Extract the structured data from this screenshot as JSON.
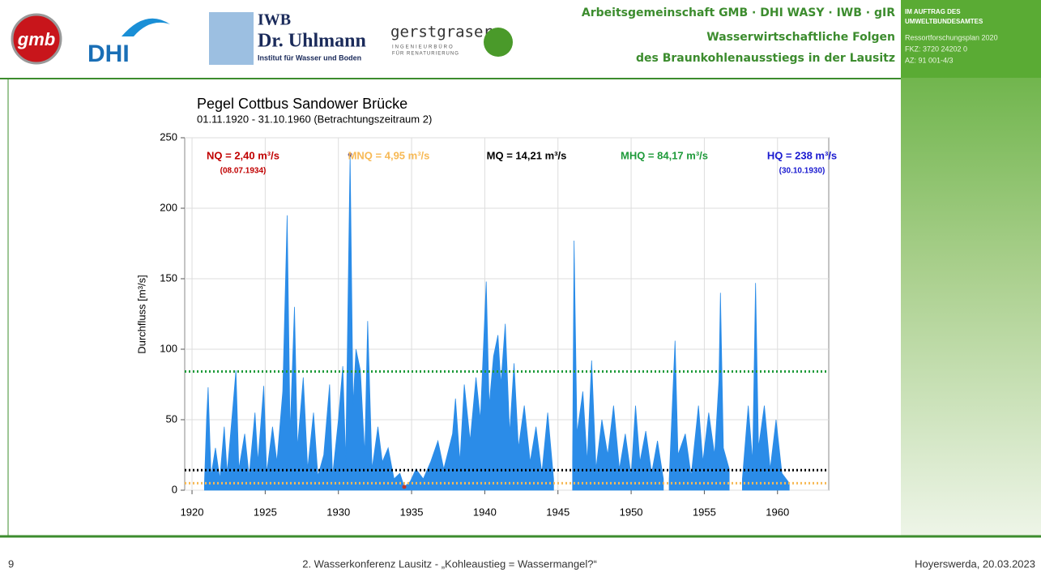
{
  "header": {
    "logos": [
      "DHI",
      "IWB",
      "Dr. Uhlmann",
      "Institut für Wasser und Boden",
      "gerstgraser",
      "INGENIEURBÜRO",
      "FÜR RENATURIERUNG"
    ],
    "title_lines": [
      "Arbeitsgemeinschaft GMB · DHI WASY · IWB · gIR",
      "Wasserwirtschaftliche Folgen",
      "des Braunkohlenausstiegs in der Lausitz"
    ],
    "client": [
      "IM AUFTRAG DES",
      "UMWELTBUNDESAMTES",
      "Ressortforschungsplan 2020",
      "FKZ: 3720 24202 0",
      "AZ: 91 001-4/3"
    ]
  },
  "footer": {
    "page": "9",
    "event": "2. Wasserkonferenz Lausitz - „Kohleaustieg = Wassermangel?“",
    "place_date": "Hoyerswerda, 20.03.2023"
  },
  "chart_data": {
    "type": "area",
    "title": "Pegel Cottbus Sandower Brücke",
    "subtitle": "01.11.1920 - 31.10.1960 (Betrachtungszeitraum 2)",
    "y_label": "Durchfluss [m³/s]",
    "xlim": [
      1919.5,
      1963.5
    ],
    "ylim": [
      0,
      250
    ],
    "xticks": [
      1920,
      1925,
      1930,
      1935,
      1940,
      1945,
      1950,
      1955,
      1960
    ],
    "yticks": [
      0,
      50,
      100,
      150,
      200,
      250
    ],
    "grid": true,
    "color": "#2b8ce8",
    "x": [
      1920.85,
      1921.0,
      1921.1,
      1921.3,
      1921.6,
      1921.9,
      1922.2,
      1922.4,
      1922.8,
      1923.0,
      1923.2,
      1923.6,
      1923.9,
      1924.3,
      1924.5,
      1924.9,
      1925.1,
      1925.5,
      1925.8,
      1926.2,
      1926.5,
      1926.7,
      1927.0,
      1927.2,
      1927.6,
      1927.9,
      1928.3,
      1928.6,
      1929.0,
      1929.4,
      1929.6,
      1930.0,
      1930.3,
      1930.5,
      1930.8,
      1931.0,
      1931.2,
      1931.5,
      1931.8,
      1932.0,
      1932.3,
      1932.7,
      1933.0,
      1933.4,
      1933.8,
      1934.2,
      1934.5,
      1934.9,
      1935.3,
      1935.8,
      1936.3,
      1936.8,
      1937.2,
      1937.8,
      1938.0,
      1938.3,
      1938.6,
      1939.0,
      1939.4,
      1939.7,
      1940.1,
      1940.3,
      1940.6,
      1940.9,
      1941.1,
      1941.4,
      1941.7,
      1942.0,
      1942.3,
      1942.7,
      1943.1,
      1943.5,
      1943.9,
      1944.3,
      1944.7,
      1945.3,
      1946.0,
      1946.1,
      1946.3,
      1946.7,
      1947.0,
      1947.3,
      1947.6,
      1948.0,
      1948.4,
      1948.8,
      1949.2,
      1949.6,
      1950.0,
      1950.3,
      1950.6,
      1951.0,
      1951.4,
      1951.8,
      1952.2,
      1952.4,
      1952.6,
      1953.0,
      1953.2,
      1953.7,
      1954.1,
      1954.6,
      1954.9,
      1955.3,
      1955.7,
      1956.0,
      1956.1,
      1956.3,
      1956.7,
      1957.2,
      1957.6,
      1958.0,
      1958.3,
      1958.5,
      1958.7,
      1959.1,
      1959.5,
      1959.9,
      1960.3,
      1960.8
    ],
    "values": [
      5,
      52,
      73,
      10,
      30,
      8,
      45,
      12,
      60,
      85,
      15,
      40,
      10,
      55,
      20,
      74,
      12,
      45,
      20,
      70,
      195,
      40,
      130,
      30,
      80,
      15,
      55,
      10,
      25,
      75,
      10,
      50,
      88,
      20,
      238,
      60,
      100,
      85,
      25,
      120,
      15,
      45,
      20,
      30,
      8,
      12,
      2.4,
      6,
      15,
      8,
      20,
      35,
      15,
      40,
      65,
      20,
      75,
      35,
      80,
      50,
      148,
      60,
      95,
      110,
      75,
      118,
      40,
      90,
      30,
      60,
      20,
      45,
      12,
      55,
      8,
      null,
      20,
      177,
      40,
      70,
      20,
      92,
      15,
      50,
      25,
      60,
      15,
      40,
      10,
      60,
      20,
      42,
      12,
      35,
      8,
      null,
      8,
      106,
      25,
      40,
      10,
      60,
      20,
      55,
      25,
      78,
      140,
      30,
      15,
      null,
      8,
      60,
      20,
      147,
      30,
      60,
      15,
      50,
      12,
      5
    ],
    "reference_lines": [
      {
        "value": 4.95,
        "color": "#f7b955"
      },
      {
        "value": 14.21,
        "color": "#000000"
      },
      {
        "value": 84.17,
        "color": "#1e9a3a"
      }
    ],
    "points": [
      {
        "x": 1934.5,
        "value": 2.4,
        "color": "#c0392b"
      },
      {
        "x": 1930.8,
        "value": 238,
        "color": "#1a1aa8"
      }
    ],
    "annotations": [
      {
        "text": "NQ = 2,40 m³/s",
        "sub": "(08.07.1934)",
        "color": "#c00000"
      },
      {
        "text": "MNQ = 4,95 m³/s",
        "color": "#f7b955"
      },
      {
        "text": "MQ = 14,21 m³/s",
        "color": "#000000"
      },
      {
        "text": "MHQ = 84,17 m³/s",
        "color": "#1e9a3a"
      },
      {
        "text": "HQ = 238 m³/s",
        "sub": "(30.10.1930)",
        "color": "#1a1ad0"
      }
    ]
  }
}
